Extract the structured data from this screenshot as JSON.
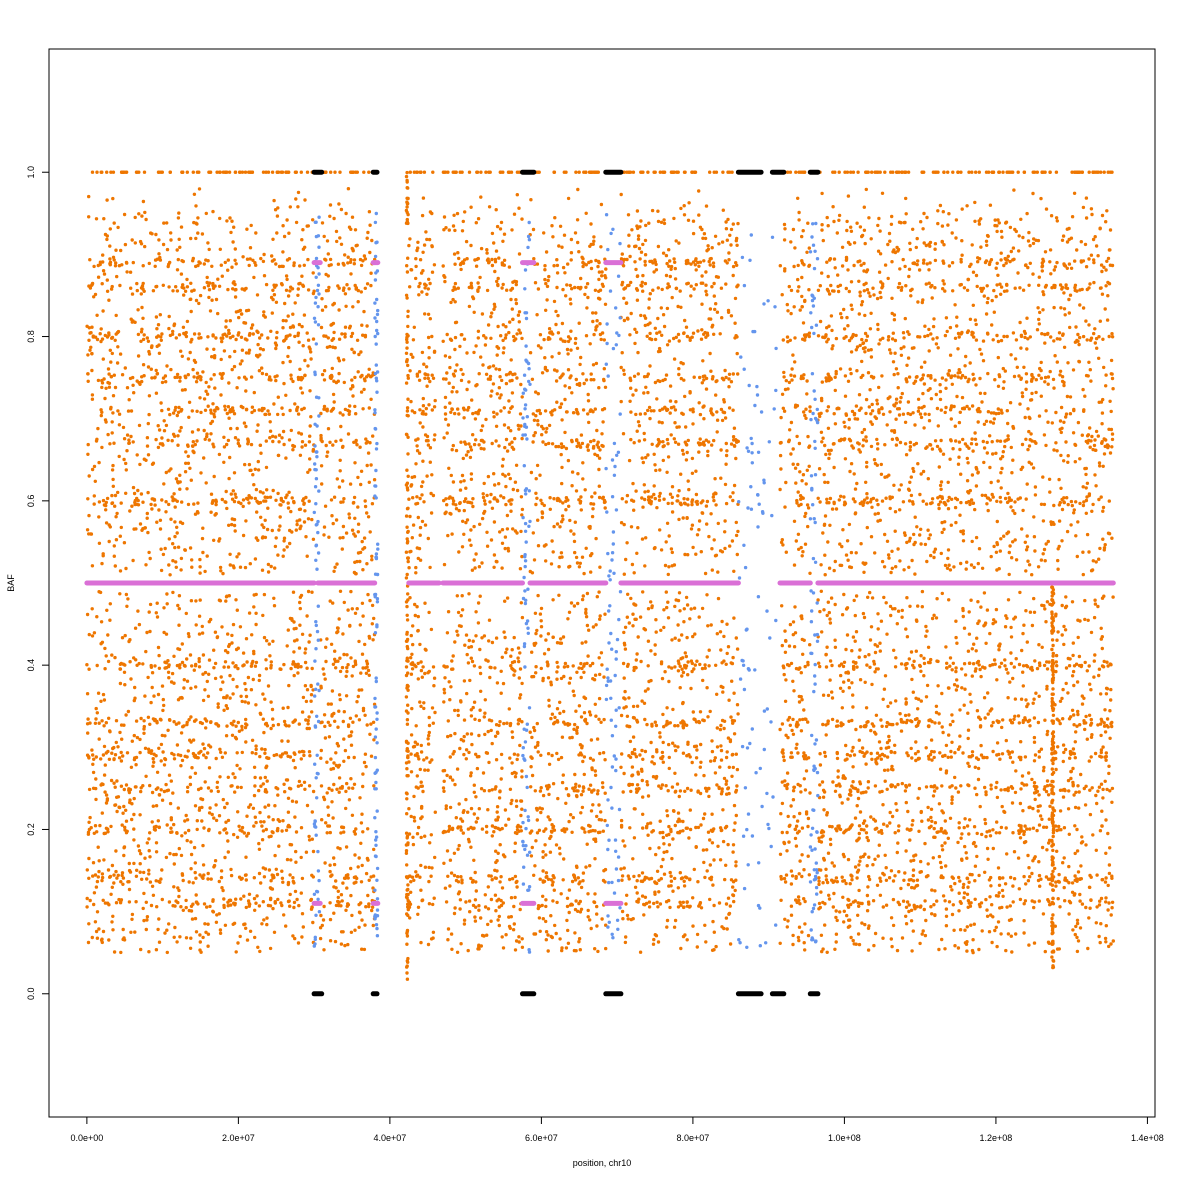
{
  "chart_data": {
    "type": "scatter",
    "title": "",
    "xlabel": "position, chr10",
    "ylabel": "BAF",
    "xlim": [
      -5000000,
      141000000
    ],
    "ylim": [
      -0.15,
      1.15
    ],
    "x_ticks": [
      {
        "value": 0,
        "label": "0.0e+00"
      },
      {
        "value": 20000000,
        "label": "2.0e+07"
      },
      {
        "value": 40000000,
        "label": "4.0e+07"
      },
      {
        "value": 60000000,
        "label": "6.0e+07"
      },
      {
        "value": 80000000,
        "label": "8.0e+07"
      },
      {
        "value": 100000000,
        "label": "1.0e+08"
      },
      {
        "value": 120000000,
        "label": "1.2e+08"
      },
      {
        "value": 140000000,
        "label": "1.4e+08"
      }
    ],
    "y_ticks": [
      {
        "value": 0.0,
        "label": "0.0"
      },
      {
        "value": 0.2,
        "label": "0.2"
      },
      {
        "value": 0.4,
        "label": "0.4"
      },
      {
        "value": 0.6,
        "label": "0.6"
      },
      {
        "value": 0.8,
        "label": "0.8"
      },
      {
        "value": 1.0,
        "label": "1.0"
      }
    ],
    "grid": false,
    "legend": "none",
    "colors": {
      "snp": "#ee7600",
      "uncertain": "#6495ed",
      "homozygous": "#000000",
      "segment": "#da70d6"
    },
    "series": [
      {
        "kind": "scatter",
        "color_key": "snp",
        "x_ranges": [
          [
            0,
            30000000
          ],
          [
            30800000,
            38000000
          ],
          [
            42500000,
            46000000
          ],
          [
            47000000,
            57500000
          ],
          [
            58500000,
            68500000
          ],
          [
            70500000,
            86000000
          ],
          [
            91500000,
            95500000
          ],
          [
            96500000,
            135500000
          ]
        ],
        "density_profile": [
          {
            "y_range": [
              0.05,
              0.49
            ],
            "weight": 0.48
          },
          {
            "y_range": [
              0.51,
              0.95
            ],
            "weight": 0.46
          },
          {
            "y_range": [
              0.95,
              0.98
            ],
            "weight": 0.01
          }
        ],
        "bands": [
          0.11,
          0.14,
          0.2,
          0.25,
          0.29,
          0.33,
          0.4,
          0.6,
          0.67,
          0.71,
          0.75,
          0.8,
          0.86,
          0.89
        ],
        "homozygous_rows": [
          1.0
        ],
        "vertical_streaks": [
          {
            "x": 42300000,
            "y_range": [
              0.01,
              1.0
            ]
          },
          {
            "x": 127500000,
            "y_range": [
              0.03,
              0.5
            ]
          }
        ]
      },
      {
        "kind": "scatter",
        "color_key": "uncertain",
        "x_ranges": [
          [
            30000000,
            30700000
          ],
          [
            38000000,
            38400000
          ],
          [
            57500000,
            58500000
          ],
          [
            68500000,
            70500000
          ],
          [
            86000000,
            91000000
          ],
          [
            95500000,
            96500000
          ]
        ],
        "y_range": [
          0.05,
          0.95
        ]
      },
      {
        "kind": "segment",
        "color_key": "homozygous",
        "segments": [
          {
            "x": [
              30000000,
              31000000
            ],
            "y": 0.0
          },
          {
            "x": [
              37800000,
              38300000
            ],
            "y": 0.0
          },
          {
            "x": [
              57500000,
              59000000
            ],
            "y": 0.0
          },
          {
            "x": [
              68500000,
              70500000
            ],
            "y": 0.0
          },
          {
            "x": [
              86000000,
              89000000
            ],
            "y": 0.0
          },
          {
            "x": [
              90500000,
              92000000
            ],
            "y": 0.0
          },
          {
            "x": [
              95500000,
              96500000
            ],
            "y": 0.0
          },
          {
            "x": [
              30000000,
              31000000
            ],
            "y": 1.0
          },
          {
            "x": [
              37800000,
              38300000
            ],
            "y": 1.0
          },
          {
            "x": [
              57500000,
              59000000
            ],
            "y": 1.0
          },
          {
            "x": [
              68500000,
              70500000
            ],
            "y": 1.0
          },
          {
            "x": [
              86000000,
              89000000
            ],
            "y": 1.0
          },
          {
            "x": [
              90500000,
              92000000
            ],
            "y": 1.0
          },
          {
            "x": [
              95500000,
              96500000
            ],
            "y": 1.0
          }
        ]
      },
      {
        "kind": "segment",
        "color_key": "segment",
        "segments": [
          {
            "x": [
              0,
              30000000
            ],
            "y": 0.5
          },
          {
            "x": [
              30500000,
              38000000
            ],
            "y": 0.5
          },
          {
            "x": [
              42500000,
              46500000
            ],
            "y": 0.5
          },
          {
            "x": [
              47000000,
              57500000
            ],
            "y": 0.5
          },
          {
            "x": [
              58500000,
              68500000
            ],
            "y": 0.5
          },
          {
            "x": [
              70500000,
              86000000
            ],
            "y": 0.5
          },
          {
            "x": [
              91500000,
              95500000
            ],
            "y": 0.5
          },
          {
            "x": [
              96500000,
              135500000
            ],
            "y": 0.5
          },
          {
            "x": [
              30000000,
              30800000
            ],
            "y": 0.89
          },
          {
            "x": [
              37800000,
              38400000
            ],
            "y": 0.89
          },
          {
            "x": [
              57500000,
              59000000
            ],
            "y": 0.89
          },
          {
            "x": [
              68500000,
              70500000
            ],
            "y": 0.89
          },
          {
            "x": [
              30000000,
              30800000
            ],
            "y": 0.11
          },
          {
            "x": [
              37800000,
              38400000
            ],
            "y": 0.11
          },
          {
            "x": [
              57500000,
              59000000
            ],
            "y": 0.11
          },
          {
            "x": [
              68500000,
              70500000
            ],
            "y": 0.11
          }
        ]
      }
    ]
  }
}
